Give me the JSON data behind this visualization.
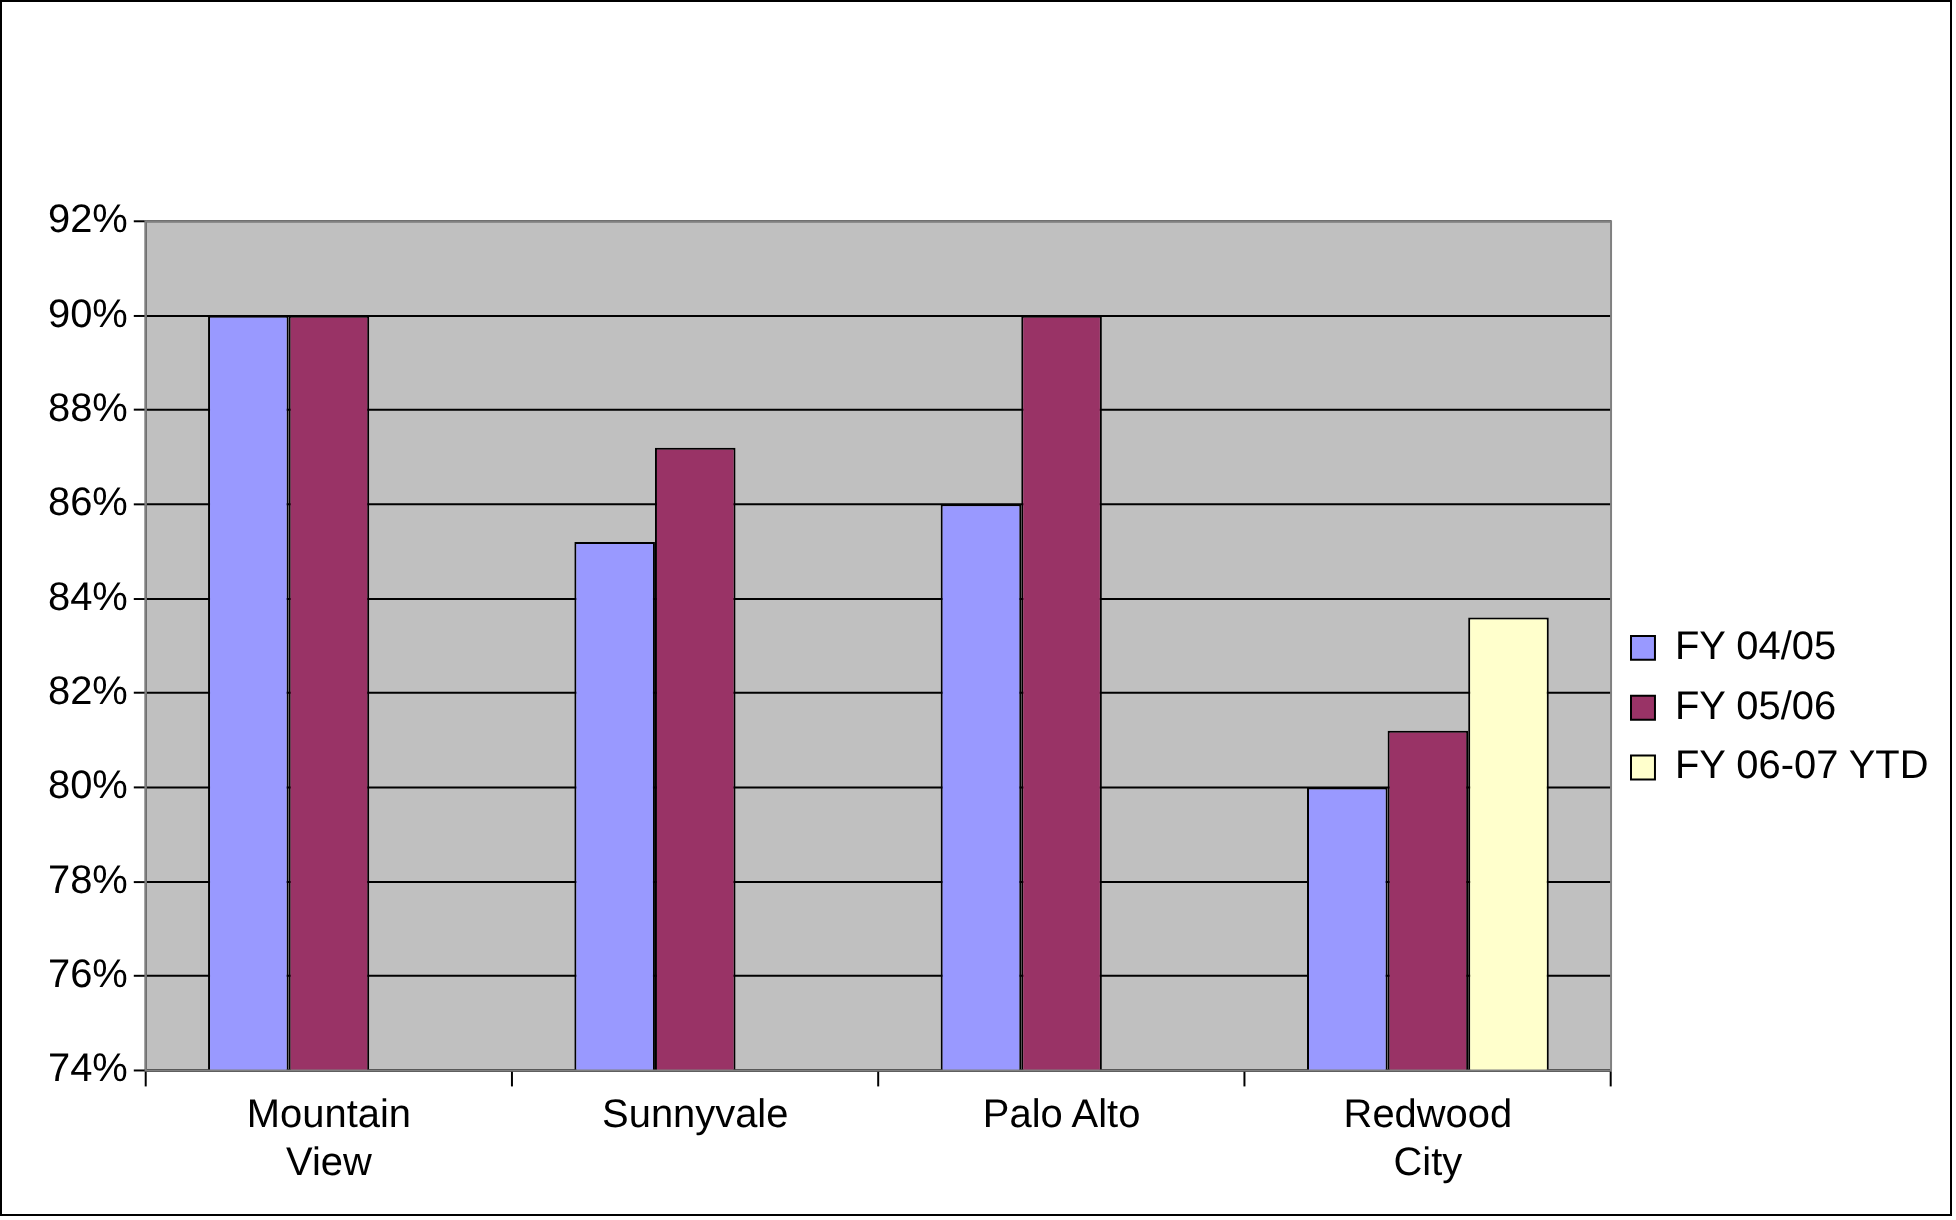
{
  "chart_data": {
    "type": "bar",
    "categories": [
      "Mountain View",
      "Sunnyvale",
      "Palo Alto",
      "Redwood City"
    ],
    "series": [
      {
        "name": "FY 04/05",
        "color": "#9999ff",
        "values": [
          90,
          85.2,
          86,
          80
        ]
      },
      {
        "name": "FY 05/06",
        "color": "#993366",
        "values": [
          90,
          87.2,
          90,
          81.2
        ]
      },
      {
        "name": "FY 06-07 YTD",
        "color": "#ffffcc",
        "values": [
          null,
          null,
          null,
          83.6
        ]
      }
    ],
    "ylim": [
      74,
      92
    ],
    "yticks": [
      {
        "value": 74,
        "label": "74%"
      },
      {
        "value": 76,
        "label": "76%"
      },
      {
        "value": 78,
        "label": "78%"
      },
      {
        "value": 80,
        "label": "80%"
      },
      {
        "value": 82,
        "label": "82%"
      },
      {
        "value": 84,
        "label": "84%"
      },
      {
        "value": 86,
        "label": "86%"
      },
      {
        "value": 88,
        "label": "88%"
      },
      {
        "value": 90,
        "label": "90%"
      },
      {
        "value": 92,
        "label": "92%"
      }
    ],
    "grid": "y",
    "legend": "right"
  }
}
